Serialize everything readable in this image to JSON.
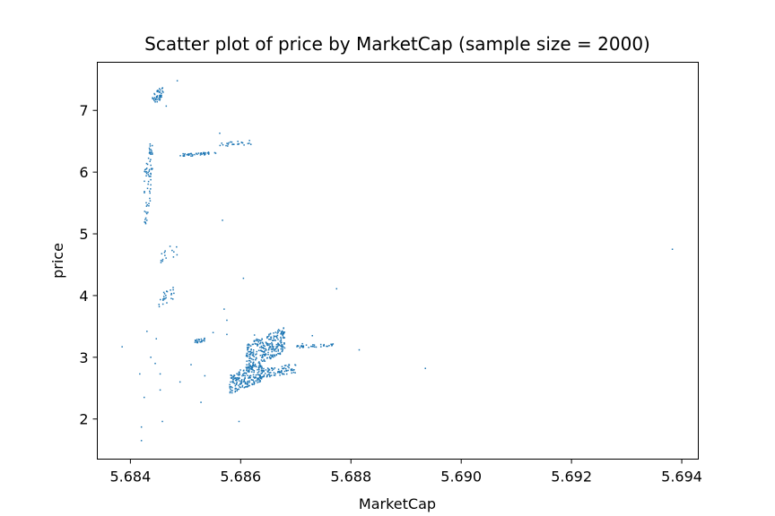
{
  "chart_data": {
    "type": "scatter",
    "title": "Scatter plot of price by MarketCap (sample size = 2000)",
    "xlabel": "MarketCap",
    "ylabel": "price",
    "xlim": [
      5.6834,
      5.6943
    ],
    "ylim": [
      1.35,
      7.78
    ],
    "xticks": [
      5.684,
      5.686,
      5.688,
      5.69,
      5.692,
      5.694
    ],
    "xtick_labels": [
      "5.684",
      "5.686",
      "5.688",
      "5.690",
      "5.692",
      "5.694"
    ],
    "yticks": [
      2,
      3,
      4,
      5,
      6,
      7
    ],
    "ytick_labels": [
      "2",
      "3",
      "4",
      "5",
      "6",
      "7"
    ],
    "grid": false,
    "marker_color": "#1f77b4",
    "points_note_omitted": true,
    "clusters": [
      {
        "name": "c1",
        "x": [
          5.6844,
          5.6846
        ],
        "y": [
          7.08,
          7.4
        ],
        "n": 45
      },
      {
        "name": "c2",
        "x": [
          5.6849,
          5.68555
        ],
        "y": [
          6.25,
          6.33
        ],
        "n": 40
      },
      {
        "name": "c3",
        "x": [
          5.6856,
          5.6862
        ],
        "y": [
          6.4,
          6.52
        ],
        "n": 25
      },
      {
        "name": "c4",
        "x": [
          5.68425,
          5.6844
        ],
        "y": [
          5.0,
          6.65
        ],
        "n": 70
      },
      {
        "name": "c5",
        "x": [
          5.68455,
          5.6849
        ],
        "y": [
          4.5,
          4.9
        ],
        "n": 15
      },
      {
        "name": "c6",
        "x": [
          5.6845,
          5.6848
        ],
        "y": [
          3.8,
          4.15
        ],
        "n": 25
      },
      {
        "name": "c7",
        "x": [
          5.6858,
          5.6864
        ],
        "y": [
          2.4,
          2.95
        ],
        "n": 220
      },
      {
        "name": "c8",
        "x": [
          5.6861,
          5.6868
        ],
        "y": [
          2.8,
          3.5
        ],
        "n": 280
      },
      {
        "name": "c9",
        "x": [
          5.6863,
          5.687
        ],
        "y": [
          2.65,
          2.9
        ],
        "n": 90
      },
      {
        "name": "c10",
        "x": [
          5.687,
          5.6877
        ],
        "y": [
          3.15,
          3.22
        ],
        "n": 35
      },
      {
        "name": "c11",
        "x": [
          5.68515,
          5.68535
        ],
        "y": [
          3.22,
          3.32
        ],
        "n": 20
      }
    ],
    "points": [
      [
        5.68385,
        3.17
      ],
      [
        5.68417,
        2.73
      ],
      [
        5.6842,
        1.87
      ],
      [
        5.6842,
        1.65
      ],
      [
        5.68425,
        2.35
      ],
      [
        5.6843,
        3.42
      ],
      [
        5.68437,
        3.0
      ],
      [
        5.68445,
        2.9
      ],
      [
        5.68447,
        3.3
      ],
      [
        5.68454,
        2.73
      ],
      [
        5.68454,
        2.47
      ],
      [
        5.68458,
        1.96
      ],
      [
        5.68465,
        7.07
      ],
      [
        5.68485,
        7.48
      ],
      [
        5.6849,
        2.6
      ],
      [
        5.6851,
        2.88
      ],
      [
        5.68528,
        2.27
      ],
      [
        5.68535,
        2.7
      ],
      [
        5.6855,
        3.4
      ],
      [
        5.68562,
        6.63
      ],
      [
        5.68567,
        5.22
      ],
      [
        5.6857,
        3.78
      ],
      [
        5.68575,
        3.6
      ],
      [
        5.68575,
        3.37
      ],
      [
        5.68597,
        1.96
      ],
      [
        5.68605,
        4.28
      ],
      [
        5.68625,
        3.36
      ],
      [
        5.68712,
        3.22
      ],
      [
        5.6873,
        3.35
      ],
      [
        5.68774,
        4.11
      ],
      [
        5.68815,
        3.12
      ],
      [
        5.68935,
        2.82
      ],
      [
        5.69383,
        4.75
      ]
    ]
  }
}
